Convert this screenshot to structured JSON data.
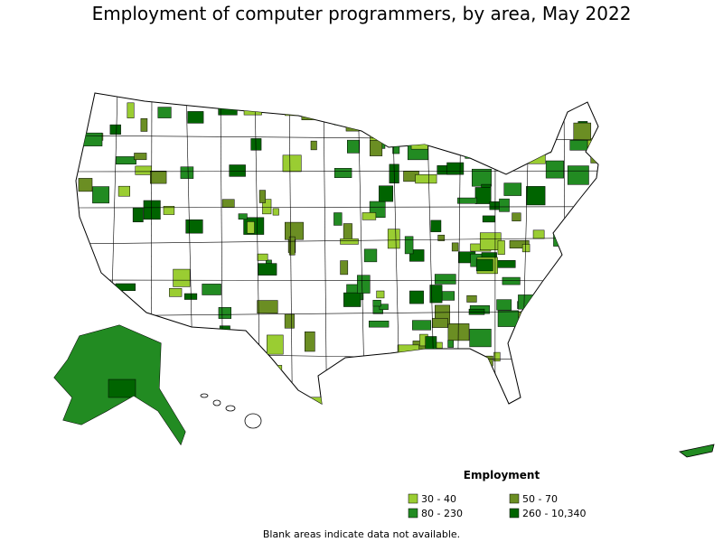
{
  "title": "Employment of computer programmers, by area, May 2022",
  "legend": {
    "title": "Employment",
    "items": [
      {
        "label": "30 - 40",
        "color": "#9acd32"
      },
      {
        "label": "50 - 70",
        "color": "#6b8e23"
      },
      {
        "label": "80 - 230",
        "color": "#228b22"
      },
      {
        "label": "260 - 10,340",
        "color": "#006400"
      }
    ]
  },
  "footnote": "Blank areas indicate data not available."
}
